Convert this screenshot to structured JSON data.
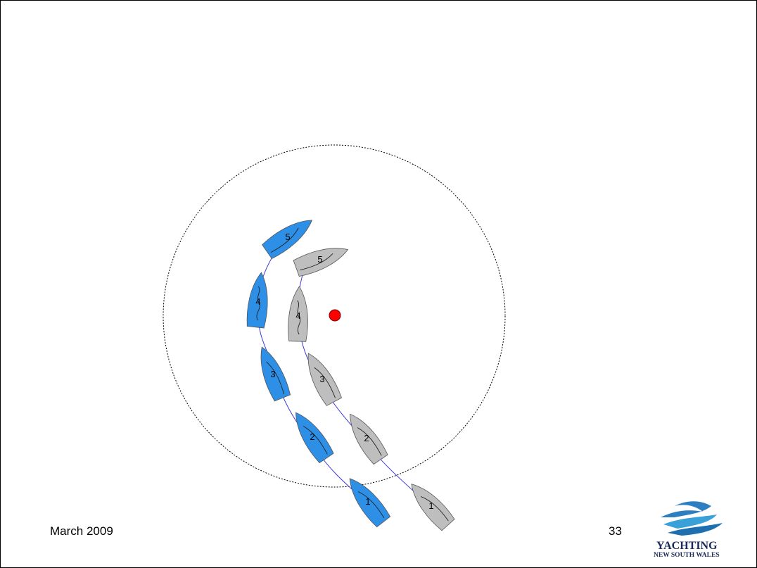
{
  "footer": {
    "date": "March 2009",
    "page_number": "33"
  },
  "logo": {
    "line1": "YACHTING",
    "line2": "NEW SOUTH WALES"
  },
  "diagram": {
    "colors": {
      "blue_boat": "#2e8fe6",
      "grey_boat": "#bebebe",
      "track": "#3a3ad8",
      "mark": "#ff0000",
      "zone": "#000000"
    },
    "blue_boat_labels": [
      "1",
      "2",
      "3",
      "4",
      "5"
    ],
    "grey_boat_labels": [
      "1",
      "2",
      "3",
      "4",
      "5"
    ]
  }
}
